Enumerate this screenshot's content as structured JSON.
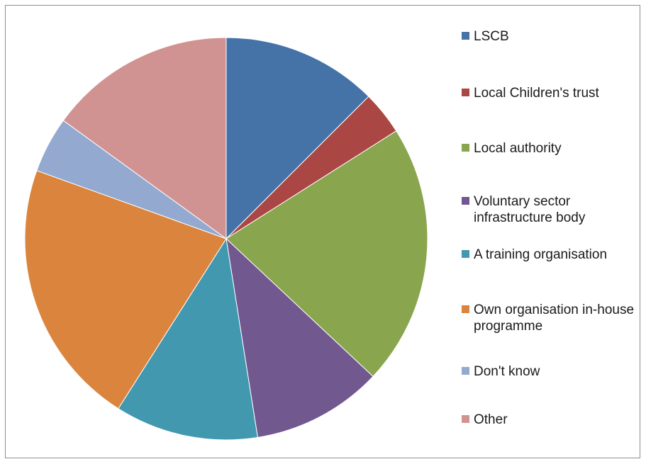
{
  "chart_data": {
    "type": "pie",
    "title": "",
    "legend_position": "right",
    "series": [
      {
        "label": "LSCB",
        "value": 12.5,
        "color": "#4572A7"
      },
      {
        "label": "Local Children's trust",
        "value": 3.5,
        "color": "#AA4643"
      },
      {
        "label": "Local authority",
        "value": 21,
        "color": "#89A54E"
      },
      {
        "label": "Voluntary sector infrastructure body",
        "value": 10.5,
        "color": "#71588F"
      },
      {
        "label": "A training organisation",
        "value": 11.5,
        "color": "#4198AF"
      },
      {
        "label": "Own organisation in-house programme",
        "value": 21.5,
        "color": "#DB843D"
      },
      {
        "label": "Don't know",
        "value": 4.5,
        "color": "#93A9CF"
      },
      {
        "label": "Other",
        "value": 15,
        "color": "#D19392"
      }
    ]
  }
}
